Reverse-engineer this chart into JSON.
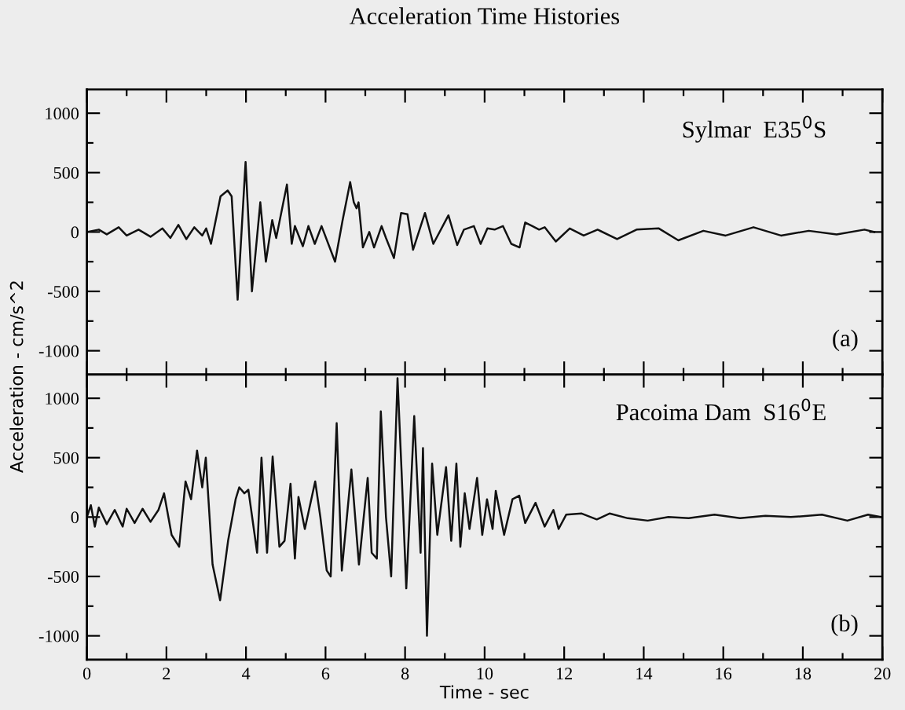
{
  "chart_data": [
    {
      "type": "line",
      "title": "Acceleration Time Histories",
      "annotations": [
        "Sylmar  E35$^{0}$S",
        "(a)"
      ],
      "tick_labels": "y",
      "xlim": [
        0,
        20
      ],
      "xticks": [
        0,
        2,
        4,
        6,
        8,
        10,
        12,
        14,
        16,
        18,
        20
      ],
      "ylim": [
        -1200,
        1200
      ],
      "yticks": [
        -1000,
        -500,
        0,
        500,
        1000
      ],
      "grid": false,
      "marker": "none",
      "line_style": "solid",
      "series": [
        {
          "color": "#111111",
          "x": [
            0,
            0.3,
            0.5,
            0.8,
            1.0,
            1.3,
            1.6,
            1.9,
            2.1,
            2.3,
            2.5,
            2.7,
            2.9,
            3.0,
            3.12,
            3.36,
            3.54,
            3.64,
            3.79,
            3.99,
            4.15,
            4.36,
            4.5,
            4.66,
            4.76,
            5.03,
            5.15,
            5.23,
            5.43,
            5.57,
            5.73,
            5.9,
            6.24,
            6.43,
            6.62,
            6.71,
            6.78,
            6.83,
            6.94,
            7.1,
            7.22,
            7.41,
            7.52,
            7.72,
            7.9,
            8.06,
            8.2,
            8.5,
            8.71,
            9.09,
            9.31,
            9.48,
            9.73,
            9.9,
            10.07,
            10.25,
            10.46,
            10.67,
            10.88,
            11.02,
            11.2,
            11.37,
            11.51,
            11.79,
            12.14,
            12.49,
            12.84,
            13.33,
            13.82,
            14.38,
            14.87,
            15.5,
            16.06,
            16.76,
            17.45,
            18.15,
            18.85,
            19.55,
            19.8
          ],
          "values": [
            0,
            20,
            -20,
            40,
            -30,
            20,
            -40,
            30,
            -50,
            60,
            -60,
            40,
            -30,
            30,
            -100,
            300,
            350,
            300,
            -570,
            590,
            -500,
            250,
            -250,
            100,
            -50,
            400,
            -100,
            50,
            -120,
            50,
            -100,
            50,
            -250,
            100,
            420,
            250,
            200,
            250,
            -130,
            0,
            -130,
            50,
            -50,
            -220,
            160,
            150,
            -150,
            160,
            -100,
            140,
            -110,
            20,
            50,
            -100,
            30,
            20,
            50,
            -100,
            -130,
            80,
            50,
            20,
            40,
            -80,
            30,
            -30,
            20,
            -60,
            20,
            30,
            -70,
            10,
            -30,
            40,
            -30,
            10,
            -20,
            20,
            0
          ]
        }
      ]
    },
    {
      "type": "line",
      "xlabel": "Time - sec",
      "ylabel": "Acceleration - cm/s^2",
      "annotations": [
        "Pacoima Dam  S16$^{0}$E",
        "(b)"
      ],
      "xlim": [
        0,
        20
      ],
      "xticks": [
        0,
        2,
        4,
        6,
        8,
        10,
        12,
        14,
        16,
        18,
        20
      ],
      "ylim": [
        -1200,
        1200
      ],
      "yticks": [
        -1000,
        -500,
        0,
        500,
        1000
      ],
      "grid": false,
      "marker": "none",
      "line_style": "solid",
      "series": [
        {
          "color": "#111111",
          "x": [
            0,
            0.1,
            0.2,
            0.3,
            0.5,
            0.7,
            0.9,
            1.0,
            1.2,
            1.4,
            1.6,
            1.8,
            1.94,
            2.13,
            2.32,
            2.48,
            2.62,
            2.77,
            2.9,
            2.99,
            3.16,
            3.35,
            3.55,
            3.74,
            3.83,
            3.96,
            4.06,
            4.28,
            4.39,
            4.53,
            4.67,
            4.84,
            4.97,
            5.12,
            5.23,
            5.32,
            5.48,
            5.74,
            5.87,
            6.03,
            6.13,
            6.28,
            6.41,
            6.65,
            6.84,
            7.06,
            7.16,
            7.29,
            7.39,
            7.52,
            7.65,
            7.81,
            7.91,
            8.03,
            8.23,
            8.39,
            8.45,
            8.55,
            8.68,
            8.81,
            9.03,
            9.16,
            9.29,
            9.39,
            9.5,
            9.62,
            9.81,
            9.94,
            10.06,
            10.2,
            10.28,
            10.49,
            10.7,
            10.87,
            11.02,
            11.28,
            11.51,
            11.73,
            11.86,
            12.05,
            12.44,
            12.82,
            13.14,
            13.6,
            14.1,
            14.62,
            15.13,
            15.78,
            16.42,
            17.06,
            17.7,
            18.48,
            19.12,
            19.64,
            19.96
          ],
          "values": [
            0,
            100,
            -80,
            80,
            -60,
            60,
            -80,
            70,
            -50,
            70,
            -40,
            60,
            200,
            -150,
            -250,
            300,
            150,
            560,
            250,
            500,
            -400,
            -700,
            -200,
            150,
            250,
            200,
            230,
            -300,
            500,
            -300,
            510,
            -250,
            -200,
            280,
            -350,
            170,
            -100,
            300,
            0,
            -450,
            -500,
            790,
            -450,
            400,
            -400,
            330,
            -300,
            -350,
            890,
            0,
            -500,
            1170,
            400,
            -600,
            850,
            -300,
            580,
            -1000,
            450,
            -150,
            420,
            -200,
            450,
            -250,
            200,
            -100,
            330,
            -150,
            150,
            -100,
            220,
            -150,
            150,
            180,
            -50,
            120,
            -80,
            60,
            -100,
            20,
            30,
            -20,
            30,
            -10,
            -30,
            0,
            -10,
            20,
            -10,
            10,
            0,
            20,
            -30,
            20,
            0
          ]
        }
      ]
    }
  ]
}
